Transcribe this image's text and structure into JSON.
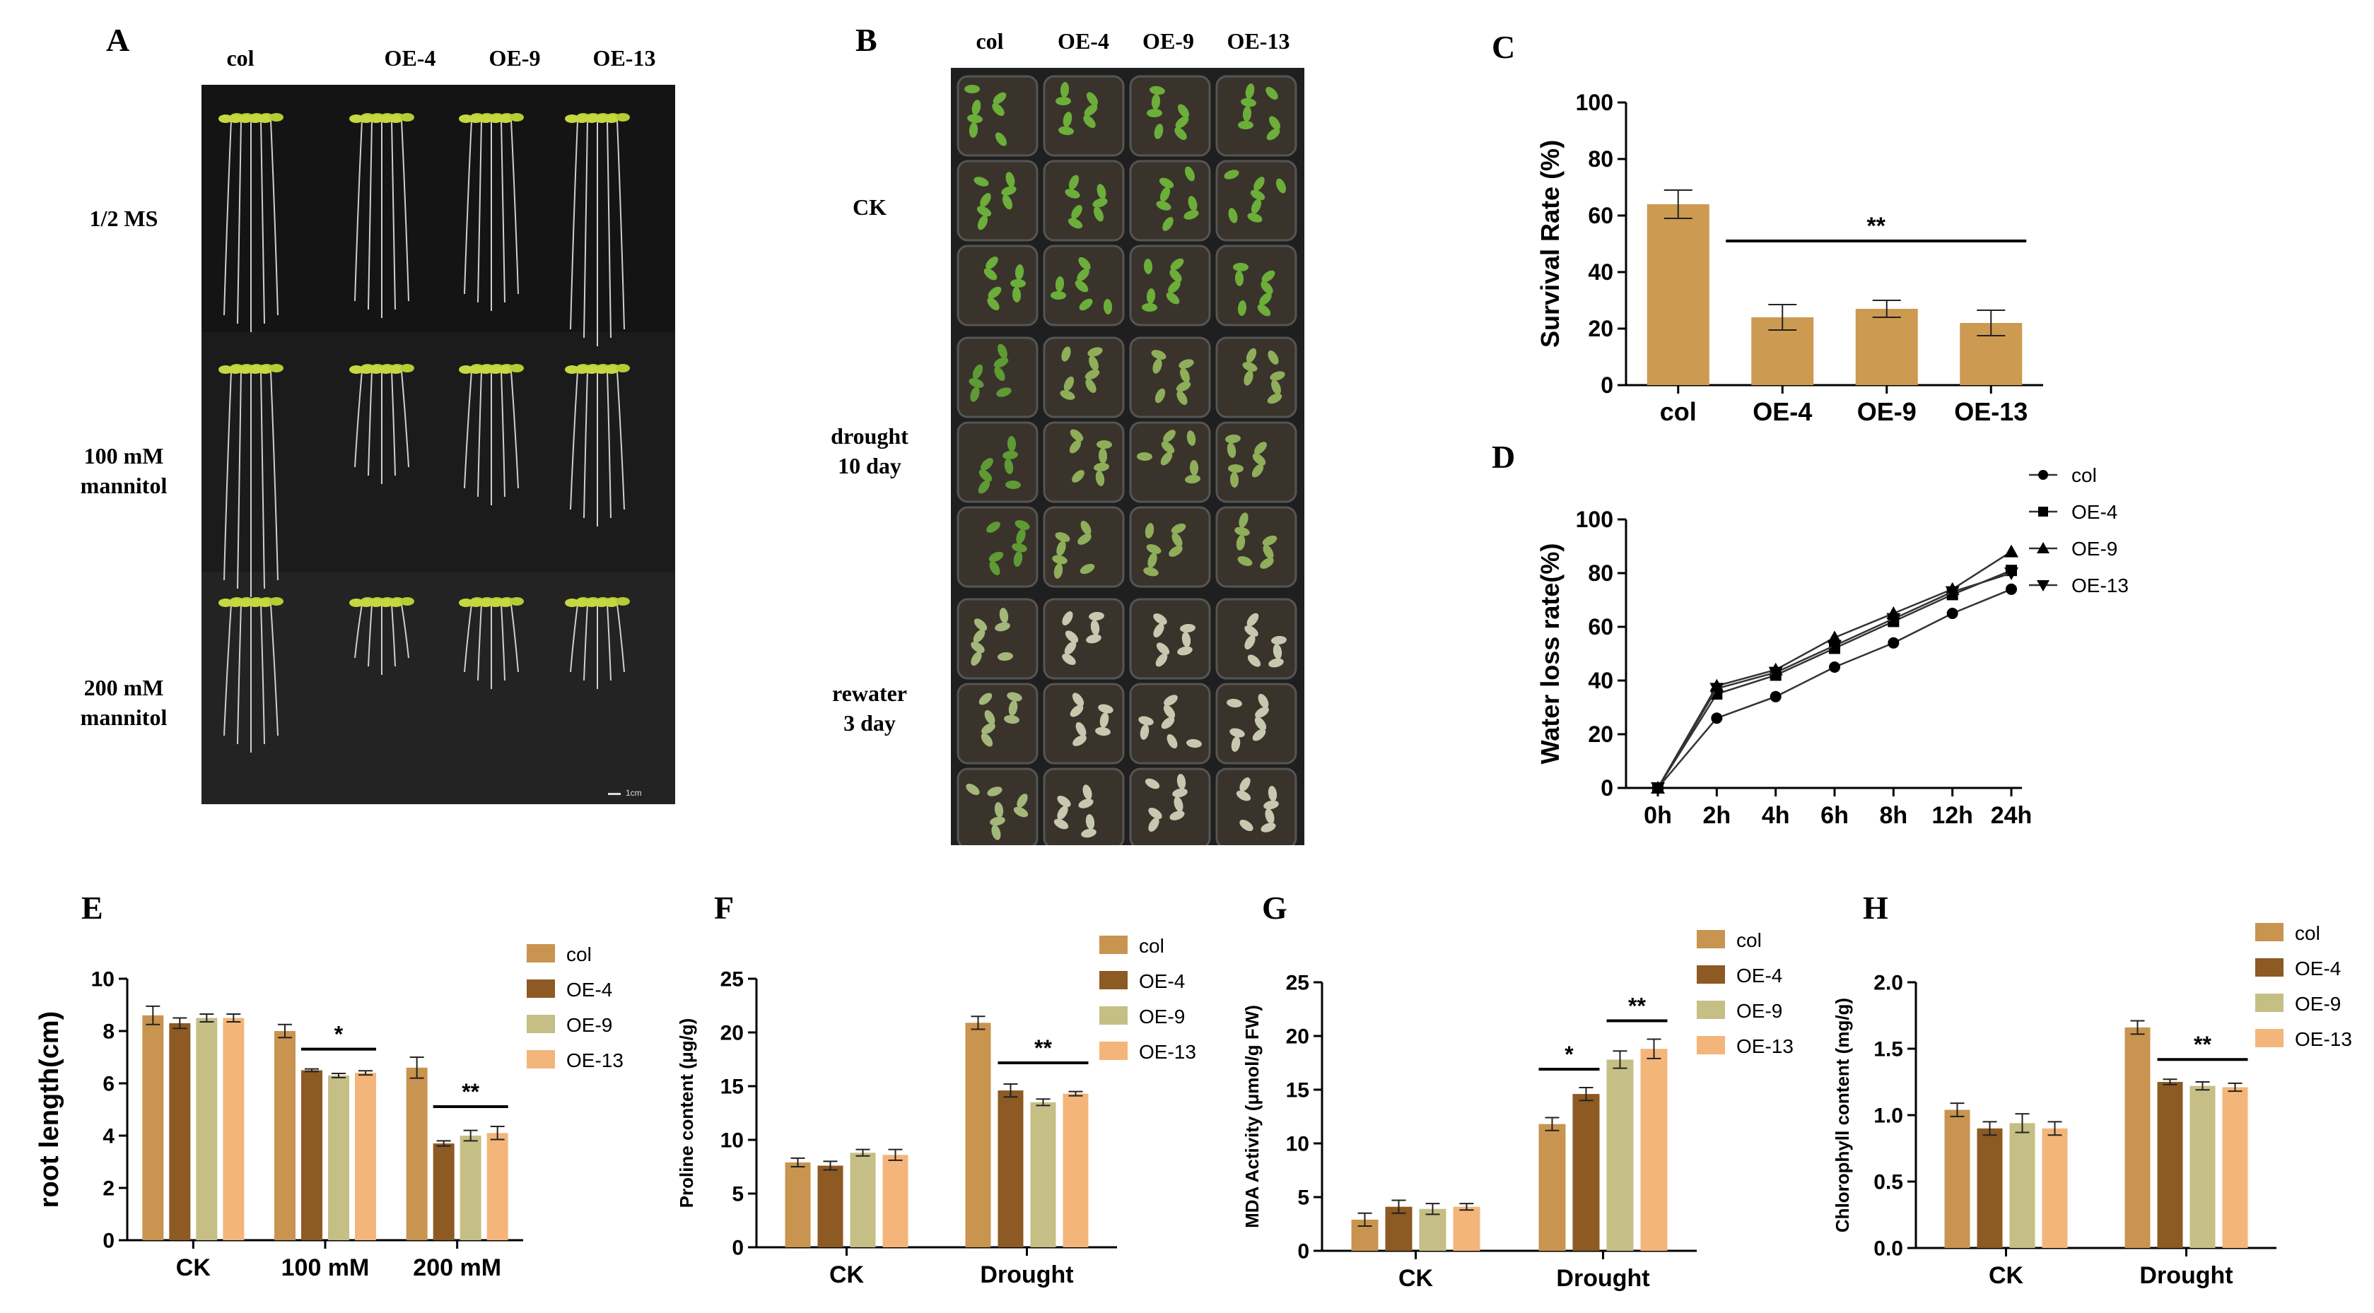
{
  "panels": {
    "A": {
      "label": "A",
      "columns": [
        "col",
        "OE-4",
        "OE-9",
        "OE-13"
      ],
      "rows": [
        {
          "lines": [
            "1/2 MS"
          ]
        },
        {
          "lines": [
            "100 mM",
            "mannitol"
          ]
        },
        {
          "lines": [
            "200 mM",
            "mannitol"
          ]
        }
      ],
      "scale_bar": "1cm"
    },
    "B": {
      "label": "B",
      "columns": [
        "col",
        "OE-4",
        "OE-9",
        "OE-13"
      ],
      "rows": [
        {
          "lines": [
            "CK"
          ]
        },
        {
          "lines": [
            "drought",
            "10 day"
          ]
        },
        {
          "lines": [
            "rewater",
            "3 day"
          ]
        }
      ]
    },
    "C": {
      "label": "C"
    },
    "D": {
      "label": "D"
    },
    "E": {
      "label": "E"
    },
    "F": {
      "label": "F"
    },
    "G": {
      "label": "G"
    },
    "H": {
      "label": "H"
    }
  },
  "colors": {
    "col": "#c8944f",
    "OE-4": "#8c5a22",
    "OE-9": "#c5bf86",
    "OE-13": "#f4b57a",
    "bar_C": "#cd9a52",
    "photo_bg": "#151515"
  },
  "chart_data": [
    {
      "id": "C",
      "type": "bar",
      "categories": [
        "col",
        "OE-4",
        "OE-9",
        "OE-13"
      ],
      "values": [
        64,
        24,
        27,
        22
      ],
      "errors": [
        5,
        4.5,
        3,
        4.5
      ],
      "ylabel": "Survival Rate (%)",
      "ylim": [
        0,
        100
      ],
      "yticks": [
        0,
        20,
        40,
        60,
        80,
        100
      ],
      "significance": [
        {
          "label": "**",
          "from": 1,
          "to": 3
        }
      ]
    },
    {
      "id": "D",
      "type": "line",
      "x": [
        "0h",
        "2h",
        "4h",
        "6h",
        "8h",
        "12h",
        "24h"
      ],
      "ylabel": "Water loss rate(%)",
      "ylim": [
        0,
        100
      ],
      "yticks": [
        0,
        20,
        40,
        60,
        80,
        100
      ],
      "legend_position": "top-right",
      "series": [
        {
          "name": "col",
          "marker": "circle",
          "values": [
            0,
            26,
            34,
            45,
            54,
            65,
            74
          ]
        },
        {
          "name": "OE-4",
          "marker": "square",
          "values": [
            0,
            35,
            42,
            52,
            62,
            72,
            81
          ]
        },
        {
          "name": "OE-9",
          "marker": "triangle-up",
          "values": [
            0,
            38,
            44,
            56,
            65,
            74,
            88
          ]
        },
        {
          "name": "OE-13",
          "marker": "triangle-down",
          "values": [
            0,
            37,
            43,
            53,
            63,
            73,
            80
          ]
        }
      ]
    },
    {
      "id": "E",
      "type": "bar",
      "categories": [
        "CK",
        "100 mM",
        "200 mM"
      ],
      "ylabel": "root length(cm)",
      "ylim": [
        0,
        10
      ],
      "yticks": [
        0,
        2,
        4,
        6,
        8,
        10
      ],
      "legend_position": "right",
      "series": [
        {
          "name": "col",
          "values": [
            8.6,
            8.0,
            6.6
          ],
          "errors": [
            0.35,
            0.25,
            0.4
          ]
        },
        {
          "name": "OE-4",
          "values": [
            8.3,
            6.5,
            3.7
          ],
          "errors": [
            0.2,
            0.05,
            0.1
          ]
        },
        {
          "name": "OE-9",
          "values": [
            8.5,
            6.3,
            4.0
          ],
          "errors": [
            0.15,
            0.08,
            0.2
          ]
        },
        {
          "name": "OE-13",
          "values": [
            8.5,
            6.4,
            4.1
          ],
          "errors": [
            0.15,
            0.08,
            0.25
          ]
        }
      ],
      "significance": [
        {
          "label": "*",
          "group": 1,
          "from": 1,
          "to": 3
        },
        {
          "label": "**",
          "group": 2,
          "from": 1,
          "to": 3
        }
      ]
    },
    {
      "id": "F",
      "type": "bar",
      "categories": [
        "CK",
        "Drought"
      ],
      "ylabel": "Proline content (μg/g)",
      "ylim": [
        0,
        25
      ],
      "yticks": [
        0,
        5,
        10,
        15,
        20,
        25
      ],
      "legend_position": "right",
      "series": [
        {
          "name": "col",
          "values": [
            7.9,
            20.9
          ],
          "errors": [
            0.4,
            0.6
          ]
        },
        {
          "name": "OE-4",
          "values": [
            7.6,
            14.6
          ],
          "errors": [
            0.4,
            0.6
          ]
        },
        {
          "name": "OE-9",
          "values": [
            8.8,
            13.5
          ],
          "errors": [
            0.3,
            0.3
          ]
        },
        {
          "name": "OE-13",
          "values": [
            8.6,
            14.3
          ],
          "errors": [
            0.5,
            0.2
          ]
        }
      ],
      "significance": [
        {
          "label": "**",
          "group": 1,
          "from": 1,
          "to": 3
        }
      ]
    },
    {
      "id": "G",
      "type": "bar",
      "categories": [
        "CK",
        "Drought"
      ],
      "ylabel": "MDA Activity (μmol/g FW)",
      "ylim": [
        0,
        25
      ],
      "yticks": [
        0,
        5,
        10,
        15,
        20,
        25
      ],
      "legend_position": "right",
      "series": [
        {
          "name": "col",
          "values": [
            2.9,
            11.8
          ],
          "errors": [
            0.6,
            0.6
          ]
        },
        {
          "name": "OE-4",
          "values": [
            4.1,
            14.6
          ],
          "errors": [
            0.6,
            0.6
          ]
        },
        {
          "name": "OE-9",
          "values": [
            3.9,
            17.8
          ],
          "errors": [
            0.5,
            0.8
          ]
        },
        {
          "name": "OE-13",
          "values": [
            4.1,
            18.8
          ],
          "errors": [
            0.3,
            0.9
          ]
        }
      ],
      "significance": [
        {
          "label": "*",
          "group": 1,
          "from": 0,
          "to": 1
        },
        {
          "label": "**",
          "group": 1,
          "from": 2,
          "to": 3
        }
      ]
    },
    {
      "id": "H",
      "type": "bar",
      "categories": [
        "CK",
        "Drought"
      ],
      "ylabel": "Chlorophyll content (mg/g)",
      "ylim": [
        0,
        2.0
      ],
      "yticks": [
        "0.0",
        "0.5",
        "1.0",
        "1.5",
        "2.0"
      ],
      "legend_position": "right",
      "series": [
        {
          "name": "col",
          "values": [
            1.04,
            1.66
          ],
          "errors": [
            0.05,
            0.05
          ]
        },
        {
          "name": "OE-4",
          "values": [
            0.9,
            1.25
          ],
          "errors": [
            0.05,
            0.02
          ]
        },
        {
          "name": "OE-9",
          "values": [
            0.94,
            1.22
          ],
          "errors": [
            0.07,
            0.03
          ]
        },
        {
          "name": "OE-13",
          "values": [
            0.9,
            1.21
          ],
          "errors": [
            0.05,
            0.03
          ]
        }
      ],
      "significance": [
        {
          "label": "**",
          "group": 1,
          "from": 1,
          "to": 3
        }
      ]
    }
  ]
}
